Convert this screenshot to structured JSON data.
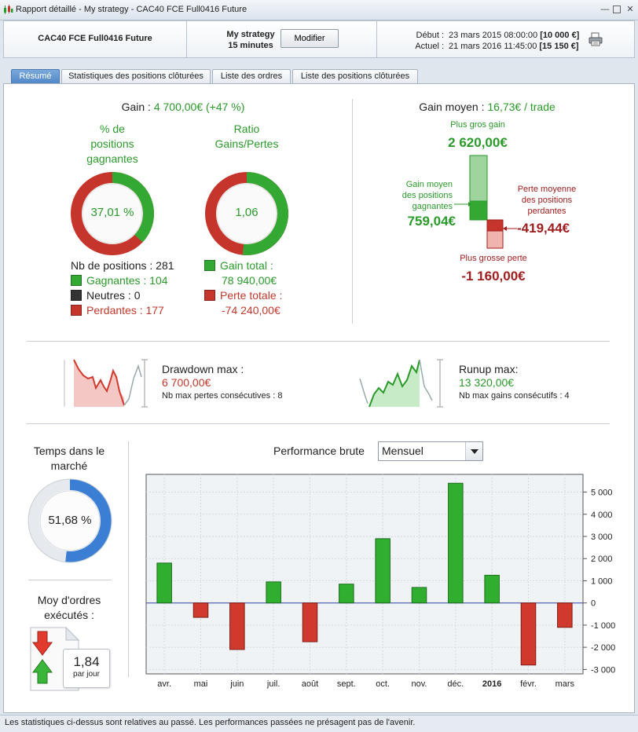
{
  "window": {
    "title": "Rapport détaillé - My strategy - CAC40 FCE Full0416 Future"
  },
  "header": {
    "instrument": "CAC40 FCE Full0416 Future",
    "strategy_name": "My strategy",
    "timeframe": "15 minutes",
    "modify_label": "Modifier",
    "start_label": "Début :",
    "start_date": "23 mars 2015 08:00:00",
    "start_value": "[10 000 €]",
    "current_label": "Actuel :",
    "current_date": "21 mars 2016 11:45:00",
    "current_value": "[15 150 €]"
  },
  "tabs": [
    {
      "label": "Résumé",
      "active": true
    },
    {
      "label": "Statistiques des positions clôturées",
      "active": false
    },
    {
      "label": "Liste des ordres",
      "active": false
    },
    {
      "label": "Liste des positions clôturées",
      "active": false
    }
  ],
  "summary": {
    "gain_label": "Gain :",
    "gain_value": "4 700,00€ (+47 %)",
    "winning_pct_title": "% de positions gagnantes",
    "winning_pct_value": "37,01 %",
    "winning_pct_fraction": 0.3701,
    "ratio_title": "Ratio Gains/Pertes",
    "ratio_value": "1,06",
    "ratio_fraction": 0.515,
    "positions_count": "Nb de positions : 281",
    "winners": "Gagnantes : 104",
    "neutrals": "Neutres : 0",
    "losers": "Perdantes : 177",
    "total_gain_label": "Gain total :",
    "total_gain_value": "78 940,00€",
    "total_loss_label": "Perte totale :",
    "total_loss_value": "-74 240,00€"
  },
  "avg_gain": {
    "label": "Gain moyen :",
    "value": "16,73€ / trade",
    "biggest_gain_label": "Plus gros gain",
    "biggest_gain_value": "2 620,00€",
    "avg_winning_label": "Gain moyen des positions gagnantes",
    "avg_winning_value": "759,04€",
    "avg_losing_label": "Perte moyenne des positions perdantes",
    "avg_losing_value": "-419,44€",
    "biggest_loss_label": "Plus grosse perte",
    "biggest_loss_value": "-1 160,00€"
  },
  "drawdown": {
    "title": "Drawdown max :",
    "value": "6 700,00€",
    "consecutive": "Nb max pertes consécutives : 8"
  },
  "runup": {
    "title": "Runup max:",
    "value": "13 320,00€",
    "consecutive": "Nb max gains consécutifs : 4"
  },
  "market_time": {
    "title": "Temps dans le marché",
    "value": "51,68 %",
    "fraction": 0.5168
  },
  "orders": {
    "title": "Moy d'ordres exécutés :",
    "value": "1,84",
    "unit": "par jour"
  },
  "performance": {
    "title": "Performance brute",
    "period_selected": "Mensuel"
  },
  "colors": {
    "gain": "#2a9a2a",
    "loss": "#c0392b",
    "accent": "#4f86c6"
  },
  "chart_data": {
    "type": "bar",
    "title": "Performance brute",
    "categories": [
      "avr.",
      "mai",
      "juin",
      "juil.",
      "août",
      "sept.",
      "oct.",
      "nov.",
      "déc.",
      "2016",
      "févr.",
      "mars"
    ],
    "values": [
      1800,
      -650,
      -2100,
      950,
      -1750,
      850,
      2900,
      700,
      5400,
      1250,
      -2800,
      -1100
    ],
    "ylim": [
      -3200,
      5800
    ],
    "yticks": [
      -3000,
      -2000,
      -1000,
      0,
      1000,
      2000,
      3000,
      4000,
      5000
    ],
    "ytick_labels": [
      "-3 000",
      "-2 000",
      "-1 000",
      "0",
      "1 000",
      "2 000",
      "3 000",
      "4 000",
      "5 000"
    ],
    "xlabel": "",
    "ylabel": "",
    "grid": true
  },
  "footer": {
    "disclaimer": "Les statistiques ci-dessus sont relatives au passé. Les performances passées ne présagent pas de l'avenir."
  }
}
